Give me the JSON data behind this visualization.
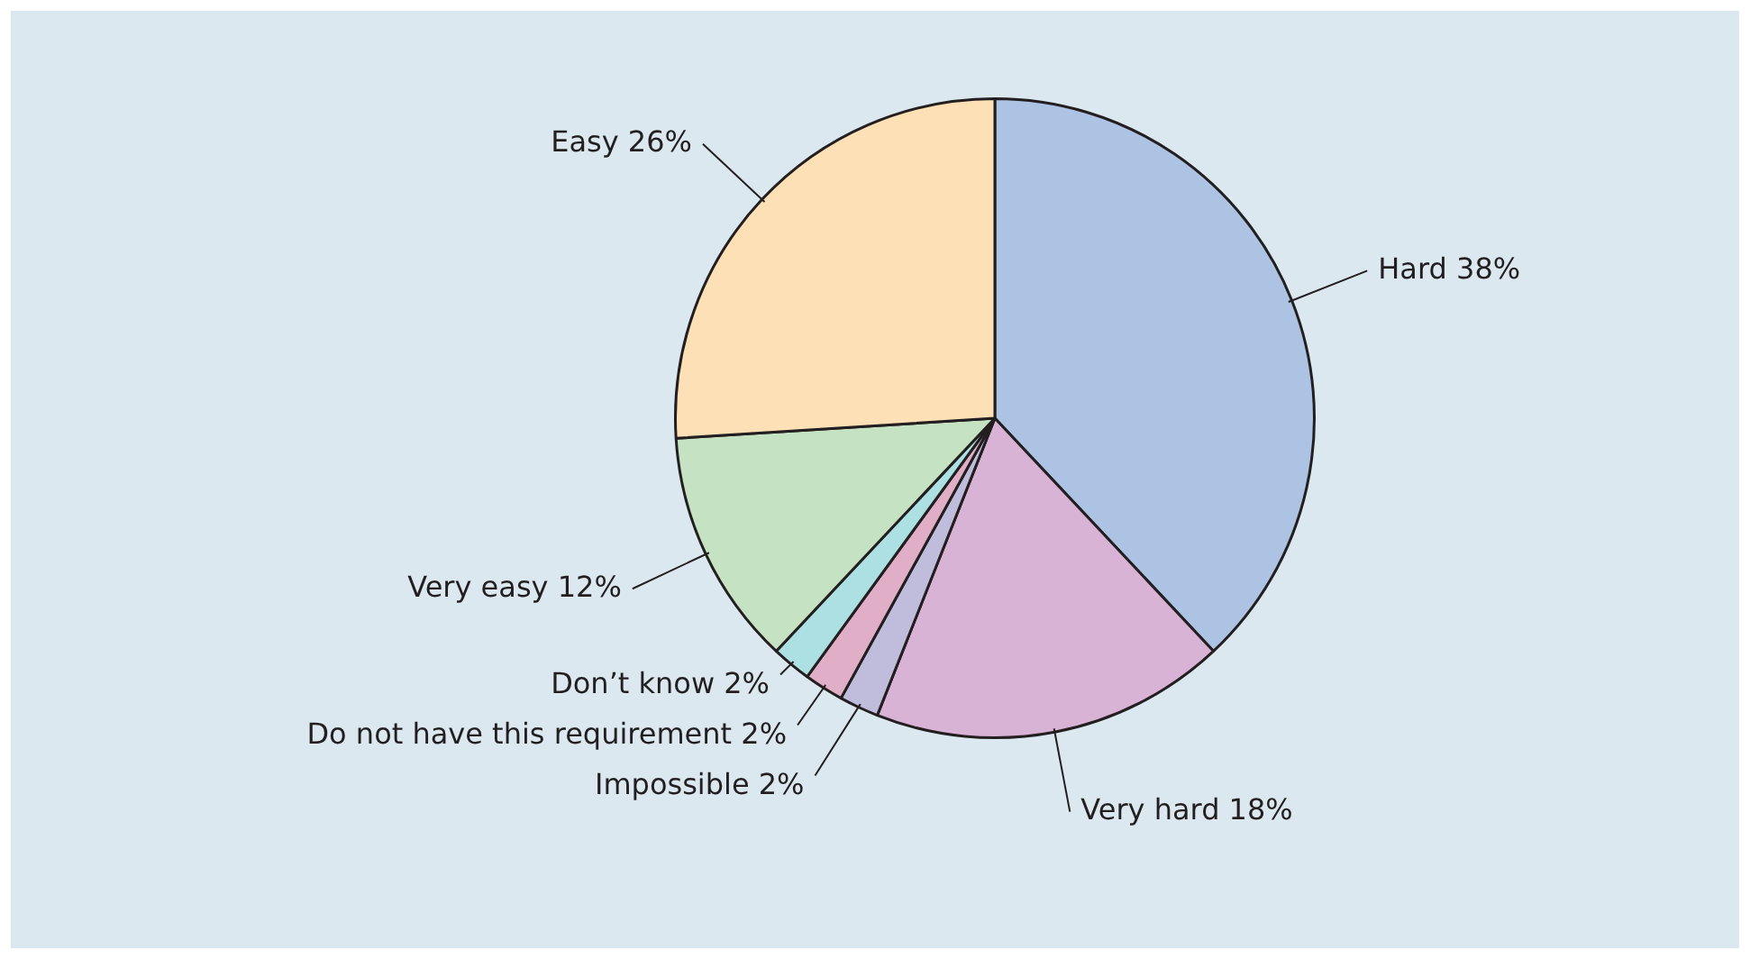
{
  "chart_data": {
    "type": "pie",
    "categories": [
      "Hard",
      "Very hard",
      "Impossible",
      "Do not have this requirement",
      "Don’t know",
      "Very easy",
      "Easy"
    ],
    "values": [
      38,
      18,
      2,
      2,
      2,
      12,
      26
    ],
    "value_labels": [
      "38%",
      "18%",
      "2%",
      "2%",
      "2%",
      "12%",
      "26%"
    ],
    "colors": [
      "#adc3e4",
      "#d9b3d6",
      "#c0bcdc",
      "#e0aec6",
      "#ade0e2",
      "#c5e2c3",
      "#fde0b5"
    ],
    "legend": false
  }
}
